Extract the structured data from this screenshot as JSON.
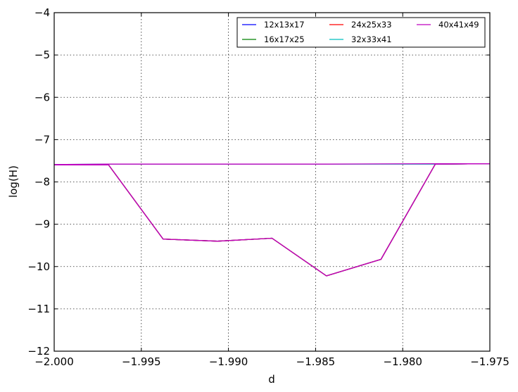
{
  "chart_data": {
    "type": "line",
    "title": "",
    "xlabel": "d",
    "ylabel": "log(H)",
    "xlim": [
      -2.0,
      -1.975
    ],
    "ylim": [
      -12,
      -4
    ],
    "xticks": [
      -2.0,
      -1.995,
      -1.99,
      -1.985,
      -1.98,
      -1.975
    ],
    "xtick_labels": [
      "−2.000",
      "−1.995",
      "−1.990",
      "−1.985",
      "−1.980",
      "−1.975"
    ],
    "yticks": [
      -4,
      -5,
      -6,
      -7,
      -8,
      -9,
      -10,
      -11,
      -12
    ],
    "ytick_labels": [
      "−4",
      "−5",
      "−6",
      "−7",
      "−8",
      "−9",
      "−10",
      "−11",
      "−12"
    ],
    "grid": true,
    "legend": {
      "position": "top-right",
      "columns": 3
    },
    "series": [
      {
        "name": "12x13x17",
        "color": "#0000ff",
        "x": [
          -2.0,
          -1.99688,
          -1.99375,
          -1.99063,
          -1.9875,
          -1.98438,
          -1.98125,
          -1.97813,
          -1.975
        ],
        "y": [
          -7.6,
          -7.6,
          -9.35,
          -9.4,
          -9.33,
          -10.22,
          -9.83,
          -7.58,
          -7.57
        ]
      },
      {
        "name": "16x17x25",
        "color": "#008000",
        "x": [
          -2.0,
          -1.99688,
          -1.99375,
          -1.99063,
          -1.9875,
          -1.98438,
          -1.98125,
          -1.97813,
          -1.975
        ],
        "y": [
          -7.6,
          -7.6,
          -9.35,
          -9.4,
          -9.33,
          -10.22,
          -9.83,
          -7.58,
          -7.57
        ]
      },
      {
        "name": "24x25x33",
        "color": "#ff0000",
        "x": [
          -2.0,
          -1.99688,
          -1.99375,
          -1.99063,
          -1.9875,
          -1.98438,
          -1.98125,
          -1.97813,
          -1.975
        ],
        "y": [
          -7.6,
          -7.6,
          -9.35,
          -9.4,
          -9.33,
          -10.22,
          -9.83,
          -7.58,
          -7.57
        ]
      },
      {
        "name": "32x33x41",
        "color": "#00bfbf",
        "x": [
          -2.0,
          -1.99688,
          -1.99375,
          -1.99063,
          -1.9875,
          -1.98438,
          -1.98125,
          -1.97813,
          -1.975
        ],
        "y": [
          -7.59,
          -7.58,
          -7.58,
          -7.58,
          -7.58,
          -7.58,
          -7.58,
          -7.58,
          -7.57
        ]
      },
      {
        "name": "40x41x49",
        "color": "#bf00bf",
        "x": [
          -2.0,
          -1.99688,
          -1.99375,
          -1.99063,
          -1.9875,
          -1.98438,
          -1.98125,
          -1.97813,
          -1.975
        ],
        "y": [
          -7.6,
          -7.6,
          -9.35,
          -9.4,
          -9.33,
          -10.22,
          -9.83,
          -7.58,
          -7.57
        ]
      },
      {
        "name": "",
        "color": "#bf00bf",
        "x": [
          -2.0,
          -1.99688,
          -1.99375,
          -1.99063,
          -1.9875,
          -1.98438,
          -1.98125,
          -1.97813,
          -1.975
        ],
        "y": [
          -7.59,
          -7.58,
          -7.58,
          -7.58,
          -7.58,
          -7.58,
          -7.575,
          -7.57,
          -7.57
        ]
      }
    ]
  }
}
